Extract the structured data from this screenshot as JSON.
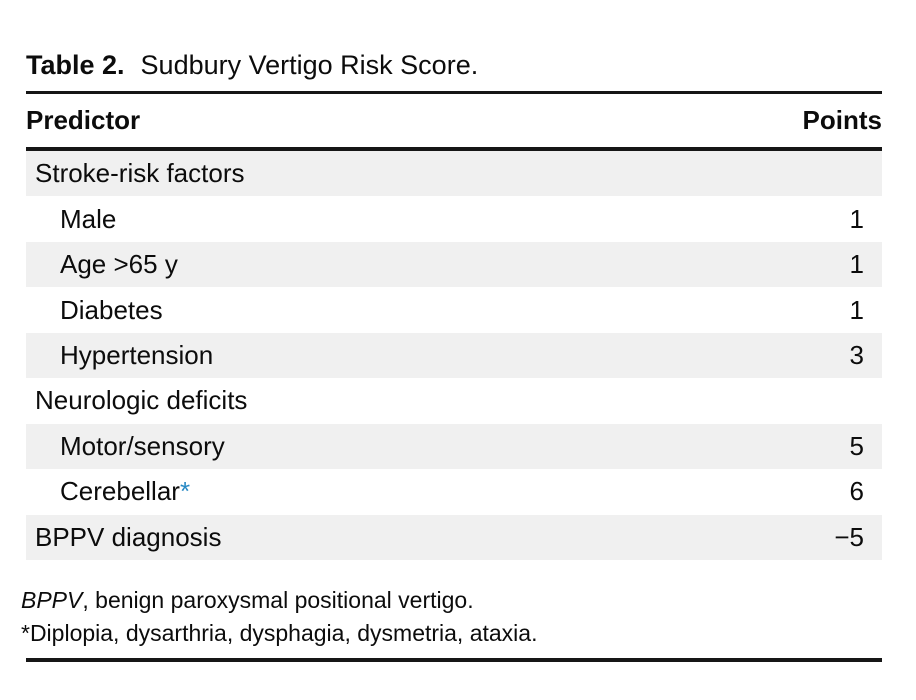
{
  "table": {
    "label": "Table 2.",
    "title": "Sudbury Vertigo Risk Score.",
    "columns": {
      "predictor": "Predictor",
      "points": "Points"
    },
    "rows": [
      {
        "label": "Stroke-risk factors",
        "points": "",
        "indent": false,
        "shaded": true,
        "marker": ""
      },
      {
        "label": "Male",
        "points": "1",
        "indent": true,
        "shaded": false,
        "marker": ""
      },
      {
        "label": "Age >65 y",
        "points": "1",
        "indent": true,
        "shaded": true,
        "marker": ""
      },
      {
        "label": "Diabetes",
        "points": "1",
        "indent": true,
        "shaded": false,
        "marker": ""
      },
      {
        "label": "Hypertension",
        "points": "3",
        "indent": true,
        "shaded": true,
        "marker": ""
      },
      {
        "label": "Neurologic deficits",
        "points": "",
        "indent": false,
        "shaded": false,
        "marker": ""
      },
      {
        "label": "Motor/sensory",
        "points": "5",
        "indent": true,
        "shaded": true,
        "marker": ""
      },
      {
        "label": "Cerebellar",
        "points": "6",
        "indent": true,
        "shaded": false,
        "marker": "*"
      },
      {
        "label": "BPPV diagnosis",
        "points": "−5",
        "indent": false,
        "shaded": true,
        "marker": ""
      }
    ],
    "footnotes": [
      {
        "term": "BPPV",
        "text": ", benign paroxysmal positional vertigo."
      },
      {
        "term": "",
        "text": "*Diplopia, dysarthria, dysphagia, dysmetria, ataxia."
      }
    ],
    "colors": {
      "shaded_row": "#f0f0f0",
      "marker_blue": "#2789c4",
      "rule_black": "#161616",
      "text_black": "#0c0c0c"
    }
  }
}
